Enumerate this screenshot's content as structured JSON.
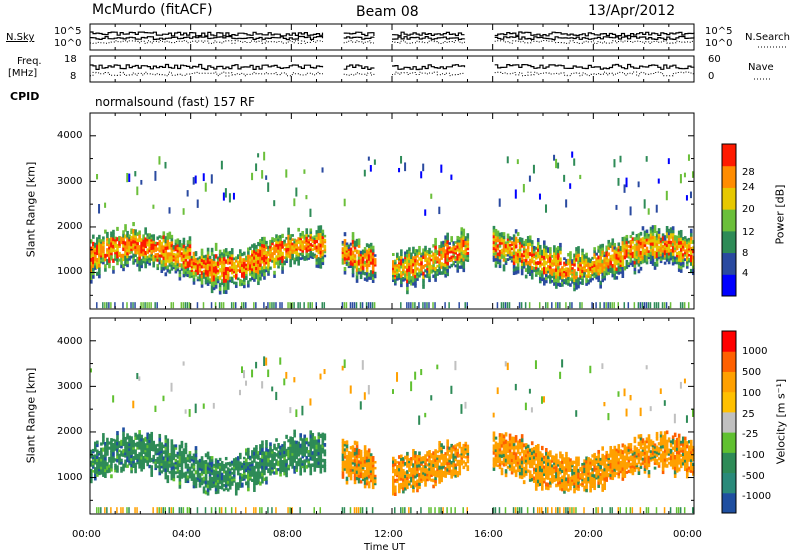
{
  "header": {
    "station": "McMurdo (fitACF)",
    "beam": "Beam 08",
    "date": "13/Apr/2012"
  },
  "top_panels": {
    "nsky_label": "N.Sky",
    "nsearch_label": "N.Search",
    "nsky_ticks": [
      "10^5",
      "10^0"
    ],
    "nsearch_ticks": [
      "10^5",
      "10^0"
    ],
    "freq_label_line1": "Freq.",
    "freq_label_line2": "[MHz]",
    "freq_ticks": [
      "18",
      "8"
    ],
    "nave_label": "Nave",
    "nave_ticks": [
      "60",
      "0"
    ],
    "cpid_label": "CPID",
    "cpid_text": "normalsound (fast) 157 RF"
  },
  "chart_data": [
    {
      "type": "heatmap",
      "name": "power-panel",
      "ylabel": "Slant Range [km]",
      "xlabel": "",
      "ylim": [
        200,
        4500
      ],
      "yticks": [
        "4000",
        "3000",
        "2000",
        "1000"
      ],
      "xlim_hours": [
        0,
        24
      ],
      "colorbar_label": "Power [dB]",
      "colorbar_ticks": [
        "28",
        "24",
        "20",
        "16",
        "12",
        "8",
        "4"
      ],
      "colors": [
        "#0000ff",
        "#2a4aa0",
        "#2e8b57",
        "#6bbf3a",
        "#e6c800",
        "#ff8c00",
        "#ff1a00"
      ],
      "data_gaps_hours": [
        [
          9.3,
          10.0
        ],
        [
          11.3,
          12.0
        ],
        [
          15.0,
          16.0
        ]
      ]
    },
    {
      "type": "heatmap",
      "name": "velocity-panel",
      "ylabel": "Slant Range [km]",
      "xlabel": "Time UT",
      "ylim": [
        200,
        4500
      ],
      "yticks": [
        "4000",
        "3000",
        "2000",
        "1000"
      ],
      "xlim_hours": [
        0,
        24
      ],
      "xticks": [
        "00:00",
        "04:00",
        "08:00",
        "12:00",
        "16:00",
        "20:00",
        "00:00"
      ],
      "colorbar_label": "Velocity [m s⁻¹]",
      "colorbar_ticks": [
        "1000",
        "500",
        "100",
        "25",
        "-25",
        "-100",
        "-500",
        "-1000"
      ],
      "colors": [
        "#ff0000",
        "#ff6000",
        "#ffa000",
        "#ffc000",
        "#c0c0c0",
        "#60c030",
        "#2e8b57",
        "#2a8a7a",
        "#1f4fa0"
      ],
      "data_gaps_hours": [
        [
          9.3,
          10.0
        ],
        [
          11.3,
          12.0
        ],
        [
          15.0,
          16.0
        ]
      ]
    }
  ]
}
